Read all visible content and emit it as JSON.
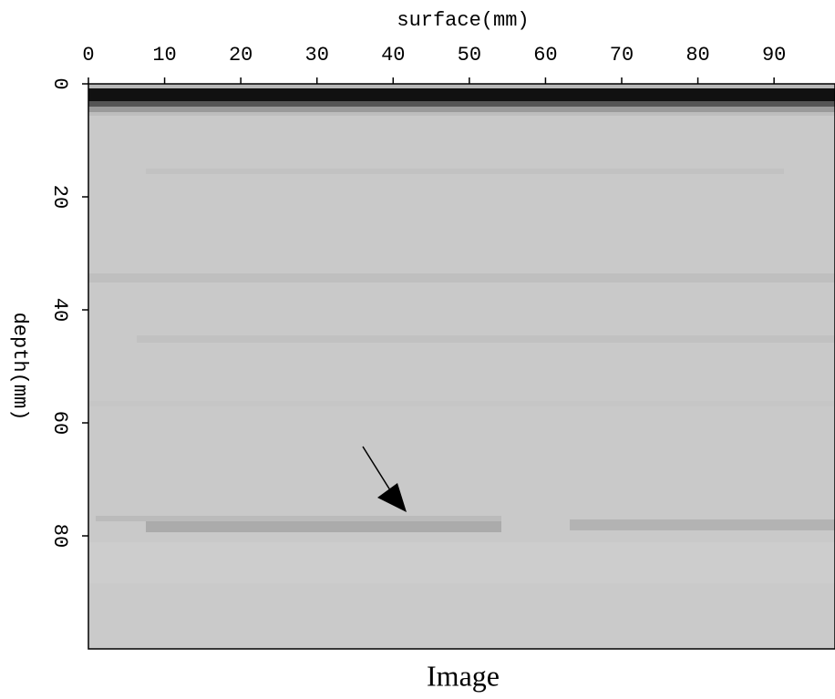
{
  "chart_data": {
    "type": "image",
    "xlabel": "surface(mm)",
    "ylabel": "depth(mm)",
    "caption": "Image",
    "xlim": [
      0,
      98
    ],
    "xticks": [
      0,
      10,
      20,
      30,
      40,
      50,
      60,
      70,
      80,
      90
    ],
    "ylim": [
      0,
      100
    ],
    "yticks": [
      0,
      20,
      40,
      60,
      80
    ]
  }
}
